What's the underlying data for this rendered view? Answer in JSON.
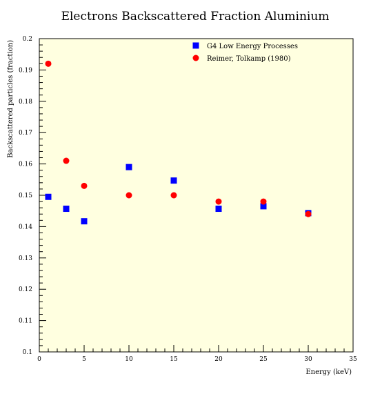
{
  "chart_data": {
    "type": "scatter",
    "title": "Electrons Backscattered Fraction Aluminium",
    "xlabel": "Energy (keV)",
    "ylabel": "Backscattered particles (fraction)",
    "xlim": [
      0,
      35
    ],
    "ylim": [
      0.1,
      0.2
    ],
    "x_ticks": [
      0,
      5,
      10,
      15,
      20,
      25,
      30,
      35
    ],
    "y_ticks": [
      0.1,
      0.11,
      0.12,
      0.13,
      0.14,
      0.15,
      0.16,
      0.17,
      0.18,
      0.19,
      0.2
    ],
    "x_tick_labels": [
      "0",
      "5",
      "10",
      "15",
      "20",
      "25",
      "30",
      "35"
    ],
    "y_tick_labels": [
      "0.1",
      "0.11",
      "0.12",
      "0.13",
      "0.14",
      "0.15",
      "0.16",
      "0.17",
      "0.18",
      "0.19",
      "0.2"
    ],
    "background_color": "#ffffe0",
    "grid": false,
    "legend_position": "top-right",
    "series": [
      {
        "name": "G4 Low Energy Processes",
        "marker": "square",
        "color": "#0000ff",
        "points": [
          {
            "x": 1,
            "y": 0.1495
          },
          {
            "x": 3,
            "y": 0.1457
          },
          {
            "x": 5,
            "y": 0.1417
          },
          {
            "x": 10,
            "y": 0.159
          },
          {
            "x": 15,
            "y": 0.1547
          },
          {
            "x": 20,
            "y": 0.1457
          },
          {
            "x": 25,
            "y": 0.1465
          },
          {
            "x": 30,
            "y": 0.1443
          }
        ]
      },
      {
        "name": "Reimer, Tolkamp (1980)",
        "marker": "circle",
        "color": "#ff0000",
        "points": [
          {
            "x": 1,
            "y": 0.192
          },
          {
            "x": 3,
            "y": 0.161
          },
          {
            "x": 5,
            "y": 0.153
          },
          {
            "x": 10,
            "y": 0.15
          },
          {
            "x": 15,
            "y": 0.15
          },
          {
            "x": 20,
            "y": 0.148
          },
          {
            "x": 25,
            "y": 0.148
          },
          {
            "x": 30,
            "y": 0.144
          }
        ]
      }
    ]
  }
}
